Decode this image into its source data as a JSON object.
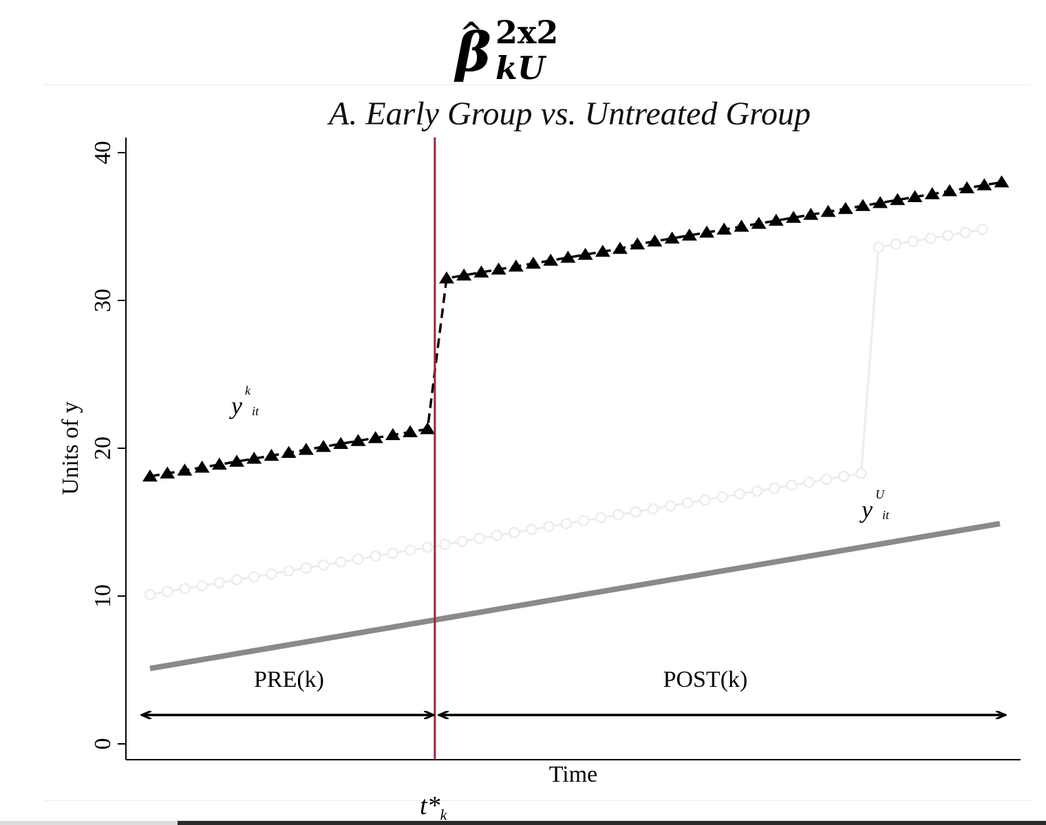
{
  "header": {
    "beta": "β",
    "hat": "^",
    "superscript": "2x2",
    "subscript": "kU"
  },
  "chart_data": {
    "type": "line",
    "title": "A. Early Group vs. Untreated Group",
    "xlabel": "Time",
    "ylabel": "Units of y",
    "ylim": [
      0,
      40
    ],
    "y_ticks": [
      0,
      10,
      20,
      30,
      40
    ],
    "x": [
      1,
      2,
      3,
      4,
      5,
      6,
      7,
      8,
      9,
      10,
      11,
      12,
      13,
      14,
      15,
      16,
      17,
      18,
      19,
      20,
      21,
      22,
      23,
      24,
      25,
      26,
      27,
      28,
      29,
      30,
      31,
      32,
      33,
      34,
      35,
      36,
      37,
      38,
      39,
      40,
      41,
      42,
      43,
      44,
      45,
      46,
      47,
      48,
      49,
      50,
      51,
      52
    ],
    "xlim": [
      0,
      53
    ],
    "treatment_time": 17.5,
    "series": [
      {
        "name": "y^k_it",
        "color": "#000000",
        "style": "dashed-triangles",
        "values": [
          18.1,
          18.3,
          18.5,
          18.7,
          18.9,
          19.1,
          19.3,
          19.5,
          19.7,
          19.9,
          20.1,
          20.3,
          20.5,
          20.7,
          20.9,
          21.1,
          21.3,
          31.5,
          31.7,
          31.9,
          32.1,
          32.3,
          32.5,
          32.7,
          32.9,
          33.1,
          33.3,
          33.5,
          33.8,
          34.0,
          34.2,
          34.4,
          34.6,
          34.8,
          35.0,
          35.2,
          35.4,
          35.6,
          35.8,
          36.0,
          36.2,
          36.4,
          36.6,
          36.8,
          37.0,
          37.2,
          37.4,
          37.6,
          37.8,
          38.0,
          null,
          null
        ]
      },
      {
        "name": "",
        "color": "#ececec",
        "style": "hollow-circles",
        "values": [
          10.1,
          10.3,
          10.5,
          10.7,
          10.9,
          11.1,
          11.3,
          11.5,
          11.7,
          11.9,
          12.1,
          12.3,
          12.5,
          12.7,
          12.9,
          13.1,
          13.3,
          13.5,
          13.7,
          13.9,
          14.1,
          14.3,
          14.5,
          14.7,
          14.9,
          15.1,
          15.3,
          15.5,
          15.7,
          15.9,
          16.1,
          16.3,
          16.5,
          16.7,
          16.9,
          17.1,
          17.3,
          17.5,
          17.7,
          17.9,
          18.1,
          18.3,
          33.6,
          33.8,
          34.0,
          34.2,
          34.4,
          34.6,
          34.8,
          null,
          null,
          null
        ]
      },
      {
        "name": "y^U_it",
        "color": "#8a8a8a",
        "style": "thick-solid",
        "values": [
          5.1,
          5.3,
          5.5,
          5.7,
          5.9,
          6.1,
          6.3,
          6.5,
          6.7,
          6.9,
          7.1,
          7.3,
          7.5,
          7.7,
          7.9,
          8.1,
          8.3,
          8.5,
          8.7,
          8.9,
          9.1,
          9.3,
          9.5,
          9.7,
          9.9,
          10.1,
          10.3,
          10.5,
          10.7,
          10.9,
          11.1,
          11.3,
          11.5,
          11.7,
          11.9,
          12.1,
          12.3,
          12.5,
          12.7,
          12.9,
          13.1,
          13.3,
          13.5,
          13.7,
          13.9,
          14.1,
          14.3,
          14.5,
          14.7,
          14.9,
          null,
          null
        ]
      }
    ],
    "annotations": {
      "series_label_k": {
        "base": "y",
        "sup": "k",
        "sub": "it"
      },
      "series_label_u": {
        "base": "y",
        "sup": "U",
        "sub": "it"
      },
      "pre_label": "PRE(k)",
      "post_label": "POST(k)",
      "treatment_label_base": "t*",
      "treatment_label_sub": "k"
    },
    "colors": {
      "treatment_line": "#a3213a",
      "axis": "#000000"
    },
    "grid": false,
    "legend": "none"
  }
}
